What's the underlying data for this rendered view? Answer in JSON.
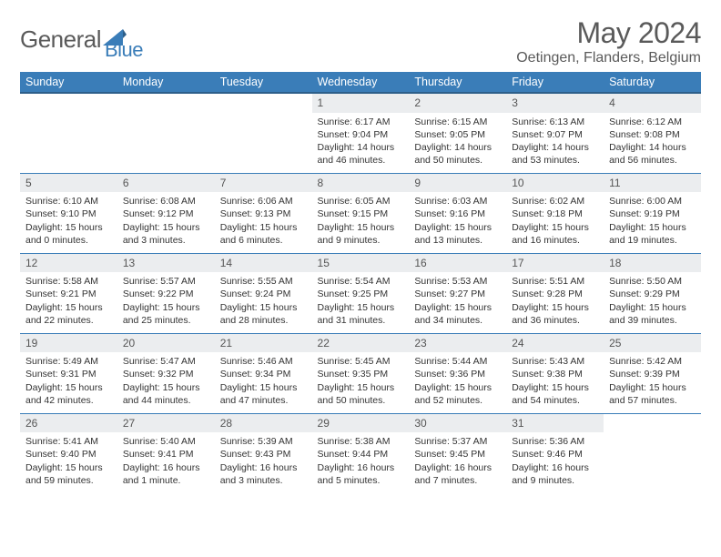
{
  "brand": {
    "part1": "General",
    "part2": "Blue"
  },
  "title": "May 2024",
  "location": "Oetingen, Flanders, Belgium",
  "colors": {
    "header_bg": "#3a7db8",
    "header_border": "#2d5f8a",
    "daynum_bg": "#ebedef",
    "row_border": "#3a7db8",
    "logo_blue": "#3a7db8",
    "text_gray": "#5a5a5a"
  },
  "weekdays": [
    "Sunday",
    "Monday",
    "Tuesday",
    "Wednesday",
    "Thursday",
    "Friday",
    "Saturday"
  ],
  "weeks": [
    [
      {
        "n": "",
        "sr": "",
        "ss": "",
        "dl": ""
      },
      {
        "n": "",
        "sr": "",
        "ss": "",
        "dl": ""
      },
      {
        "n": "",
        "sr": "",
        "ss": "",
        "dl": ""
      },
      {
        "n": "1",
        "sr": "Sunrise: 6:17 AM",
        "ss": "Sunset: 9:04 PM",
        "dl": "Daylight: 14 hours and 46 minutes."
      },
      {
        "n": "2",
        "sr": "Sunrise: 6:15 AM",
        "ss": "Sunset: 9:05 PM",
        "dl": "Daylight: 14 hours and 50 minutes."
      },
      {
        "n": "3",
        "sr": "Sunrise: 6:13 AM",
        "ss": "Sunset: 9:07 PM",
        "dl": "Daylight: 14 hours and 53 minutes."
      },
      {
        "n": "4",
        "sr": "Sunrise: 6:12 AM",
        "ss": "Sunset: 9:08 PM",
        "dl": "Daylight: 14 hours and 56 minutes."
      }
    ],
    [
      {
        "n": "5",
        "sr": "Sunrise: 6:10 AM",
        "ss": "Sunset: 9:10 PM",
        "dl": "Daylight: 15 hours and 0 minutes."
      },
      {
        "n": "6",
        "sr": "Sunrise: 6:08 AM",
        "ss": "Sunset: 9:12 PM",
        "dl": "Daylight: 15 hours and 3 minutes."
      },
      {
        "n": "7",
        "sr": "Sunrise: 6:06 AM",
        "ss": "Sunset: 9:13 PM",
        "dl": "Daylight: 15 hours and 6 minutes."
      },
      {
        "n": "8",
        "sr": "Sunrise: 6:05 AM",
        "ss": "Sunset: 9:15 PM",
        "dl": "Daylight: 15 hours and 9 minutes."
      },
      {
        "n": "9",
        "sr": "Sunrise: 6:03 AM",
        "ss": "Sunset: 9:16 PM",
        "dl": "Daylight: 15 hours and 13 minutes."
      },
      {
        "n": "10",
        "sr": "Sunrise: 6:02 AM",
        "ss": "Sunset: 9:18 PM",
        "dl": "Daylight: 15 hours and 16 minutes."
      },
      {
        "n": "11",
        "sr": "Sunrise: 6:00 AM",
        "ss": "Sunset: 9:19 PM",
        "dl": "Daylight: 15 hours and 19 minutes."
      }
    ],
    [
      {
        "n": "12",
        "sr": "Sunrise: 5:58 AM",
        "ss": "Sunset: 9:21 PM",
        "dl": "Daylight: 15 hours and 22 minutes."
      },
      {
        "n": "13",
        "sr": "Sunrise: 5:57 AM",
        "ss": "Sunset: 9:22 PM",
        "dl": "Daylight: 15 hours and 25 minutes."
      },
      {
        "n": "14",
        "sr": "Sunrise: 5:55 AM",
        "ss": "Sunset: 9:24 PM",
        "dl": "Daylight: 15 hours and 28 minutes."
      },
      {
        "n": "15",
        "sr": "Sunrise: 5:54 AM",
        "ss": "Sunset: 9:25 PM",
        "dl": "Daylight: 15 hours and 31 minutes."
      },
      {
        "n": "16",
        "sr": "Sunrise: 5:53 AM",
        "ss": "Sunset: 9:27 PM",
        "dl": "Daylight: 15 hours and 34 minutes."
      },
      {
        "n": "17",
        "sr": "Sunrise: 5:51 AM",
        "ss": "Sunset: 9:28 PM",
        "dl": "Daylight: 15 hours and 36 minutes."
      },
      {
        "n": "18",
        "sr": "Sunrise: 5:50 AM",
        "ss": "Sunset: 9:29 PM",
        "dl": "Daylight: 15 hours and 39 minutes."
      }
    ],
    [
      {
        "n": "19",
        "sr": "Sunrise: 5:49 AM",
        "ss": "Sunset: 9:31 PM",
        "dl": "Daylight: 15 hours and 42 minutes."
      },
      {
        "n": "20",
        "sr": "Sunrise: 5:47 AM",
        "ss": "Sunset: 9:32 PM",
        "dl": "Daylight: 15 hours and 44 minutes."
      },
      {
        "n": "21",
        "sr": "Sunrise: 5:46 AM",
        "ss": "Sunset: 9:34 PM",
        "dl": "Daylight: 15 hours and 47 minutes."
      },
      {
        "n": "22",
        "sr": "Sunrise: 5:45 AM",
        "ss": "Sunset: 9:35 PM",
        "dl": "Daylight: 15 hours and 50 minutes."
      },
      {
        "n": "23",
        "sr": "Sunrise: 5:44 AM",
        "ss": "Sunset: 9:36 PM",
        "dl": "Daylight: 15 hours and 52 minutes."
      },
      {
        "n": "24",
        "sr": "Sunrise: 5:43 AM",
        "ss": "Sunset: 9:38 PM",
        "dl": "Daylight: 15 hours and 54 minutes."
      },
      {
        "n": "25",
        "sr": "Sunrise: 5:42 AM",
        "ss": "Sunset: 9:39 PM",
        "dl": "Daylight: 15 hours and 57 minutes."
      }
    ],
    [
      {
        "n": "26",
        "sr": "Sunrise: 5:41 AM",
        "ss": "Sunset: 9:40 PM",
        "dl": "Daylight: 15 hours and 59 minutes."
      },
      {
        "n": "27",
        "sr": "Sunrise: 5:40 AM",
        "ss": "Sunset: 9:41 PM",
        "dl": "Daylight: 16 hours and 1 minute."
      },
      {
        "n": "28",
        "sr": "Sunrise: 5:39 AM",
        "ss": "Sunset: 9:43 PM",
        "dl": "Daylight: 16 hours and 3 minutes."
      },
      {
        "n": "29",
        "sr": "Sunrise: 5:38 AM",
        "ss": "Sunset: 9:44 PM",
        "dl": "Daylight: 16 hours and 5 minutes."
      },
      {
        "n": "30",
        "sr": "Sunrise: 5:37 AM",
        "ss": "Sunset: 9:45 PM",
        "dl": "Daylight: 16 hours and 7 minutes."
      },
      {
        "n": "31",
        "sr": "Sunrise: 5:36 AM",
        "ss": "Sunset: 9:46 PM",
        "dl": "Daylight: 16 hours and 9 minutes."
      },
      {
        "n": "",
        "sr": "",
        "ss": "",
        "dl": ""
      }
    ]
  ]
}
